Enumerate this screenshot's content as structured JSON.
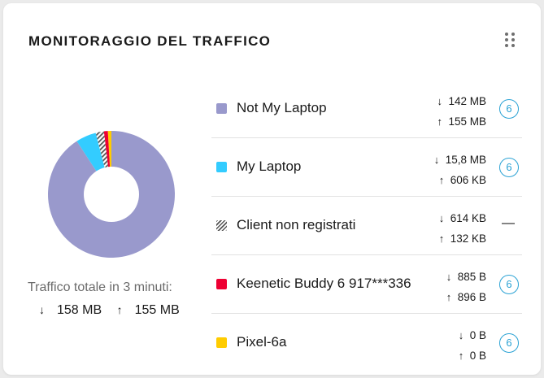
{
  "card": {
    "title": "MONITORAGGIO DEL TRAFFICO",
    "total_label": "Traffico totale in 3 minuti:",
    "total_down": "158 MB",
    "total_up": "155 MB",
    "down_arrow": "↓",
    "up_arrow": "↑"
  },
  "colors": {
    "not_my_laptop": "#9999cc",
    "my_laptop": "#33ccff",
    "unregistered": "hatched",
    "keenetic_buddy": "#ee0033",
    "pixel": "#ffcc00",
    "badge": "#2aa2d4"
  },
  "devices": [
    {
      "name": "Not My Laptop",
      "down": "142 MB",
      "up": "155 MB",
      "badge": "6",
      "color": "#9999cc"
    },
    {
      "name": "My Laptop",
      "down": "15,8 MB",
      "up": "606 KB",
      "badge": "6",
      "color": "#33ccff"
    },
    {
      "name": "Client non registrati",
      "down": "614 KB",
      "up": "132 KB",
      "badge": "—",
      "color": "hatched"
    },
    {
      "name": "Keenetic Buddy 6 917***336",
      "down": "885 B",
      "up": "896 B",
      "badge": "6",
      "color": "#ee0033"
    },
    {
      "name": "Pixel-6a",
      "down": "0 B",
      "up": "0 B",
      "badge": "6",
      "color": "#ffcc00"
    }
  ],
  "chart_data": {
    "type": "pie",
    "style": "donut",
    "slices": [
      {
        "label": "Not My Laptop",
        "value": 90.8,
        "color": "#9999cc"
      },
      {
        "label": "My Laptop",
        "value": 5.2,
        "color": "#33ccff"
      },
      {
        "label": "Client non registrati",
        "value": 2.1,
        "color": "hatched"
      },
      {
        "label": "Keenetic Buddy 6 917***336",
        "value": 1.0,
        "color": "#ee0033"
      },
      {
        "label": "Pixel-6a",
        "value": 0.9,
        "color": "#ffcc00"
      }
    ]
  }
}
